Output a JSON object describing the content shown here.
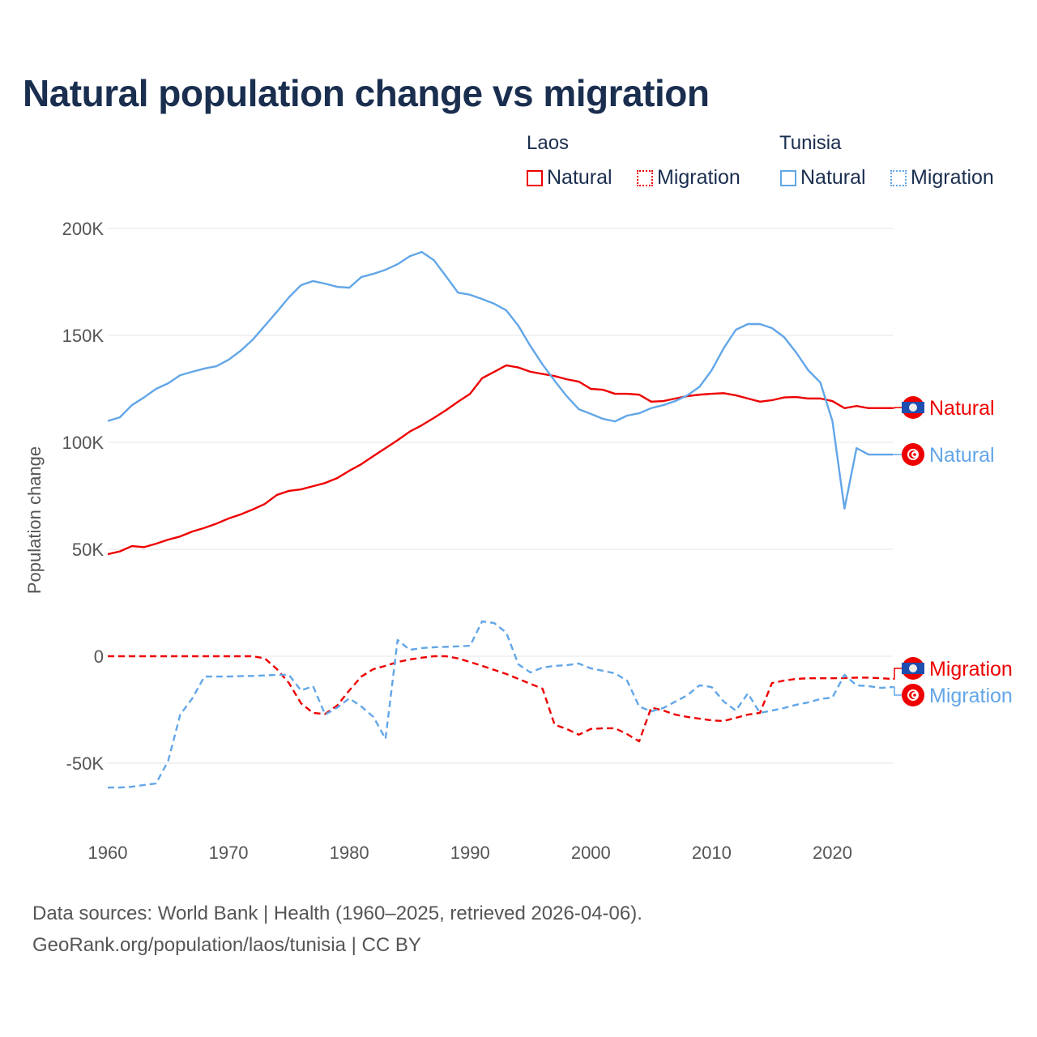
{
  "title": "Natural population change vs migration",
  "legend": {
    "groups": [
      {
        "name": "Laos",
        "items": [
          "Natural",
          "Migration"
        ]
      },
      {
        "name": "Tunisia",
        "items": [
          "Natural",
          "Migration"
        ]
      }
    ]
  },
  "colors": {
    "laos": "#ee0000",
    "tunisia": "#62a6e8",
    "grid": "#e6e6e6"
  },
  "footer": {
    "line1": "Data sources: World Bank | Health (1960–2025, retrieved 2026-04-06).",
    "line2": "GeoRank.org/population/laos/tunisia | CC BY"
  },
  "chart_data": {
    "type": "line",
    "title": "Natural population change vs migration",
    "xlabel": "",
    "ylabel": "Population change",
    "xlim": [
      1960,
      2025
    ],
    "ylim": [
      -65000,
      200000
    ],
    "x_ticks": [
      "1960",
      "1970",
      "1980",
      "1990",
      "2000",
      "2010",
      "2020"
    ],
    "y_ticks": [
      {
        "v": -50000,
        "label": "-50K"
      },
      {
        "v": 0,
        "label": "0"
      },
      {
        "v": 50000,
        "label": "50K"
      },
      {
        "v": 100000,
        "label": "100K"
      },
      {
        "v": 150000,
        "label": "150K"
      },
      {
        "v": 200000,
        "label": "200K"
      }
    ],
    "grid": true,
    "legend_position": "top-right",
    "start_year": 1960,
    "series": [
      {
        "name": "Laos Natural",
        "country": "laos",
        "dashed": false,
        "end_label": "Natural",
        "values": [
          47.7,
          49,
          51.5,
          51,
          52.6,
          54.5,
          56,
          58.3,
          60,
          62,
          64.4,
          66.3,
          68.6,
          71.2,
          75.4,
          77.3,
          78,
          79.5,
          81,
          83.3,
          86.7,
          89.8,
          93.6,
          97.3,
          101,
          105,
          108,
          111.4,
          115,
          119,
          122.7,
          130,
          133,
          136,
          135,
          133,
          132,
          131,
          129.5,
          128.4,
          125,
          124.6,
          122.7,
          122.7,
          122.3,
          119,
          119.3,
          120.5,
          121.6,
          122.3,
          122.7,
          123,
          122,
          120.5,
          119,
          119.7,
          121,
          121.2,
          120.5,
          120.5,
          119.3,
          116,
          117,
          116
        ]
      },
      {
        "name": "Laos Migration",
        "country": "laos",
        "dashed": true,
        "end_label": "Migration",
        "values": [
          0,
          0,
          0,
          0,
          0,
          0,
          0,
          0,
          0,
          0,
          0,
          0,
          0,
          -1,
          -6,
          -12.5,
          -22,
          -26.5,
          -27,
          -23,
          -16,
          -9.5,
          -6,
          -4.5,
          -2.7,
          -1.5,
          -0.7,
          0,
          0,
          -1,
          -2.7,
          -4.5,
          -6.4,
          -8.3,
          -10.6,
          -12.9,
          -15.2,
          -32,
          -34,
          -36.7,
          -34,
          -33.7,
          -33.7,
          -36.4,
          -39.8,
          -24,
          -25.4,
          -27.3,
          -28.4,
          -29.2,
          -30,
          -30.3,
          -28.8,
          -27.3,
          -26.5,
          -12.5,
          -11.4,
          -10.6,
          -10.3,
          -10.3,
          -10.3,
          -10.2,
          -10,
          -10,
          -10.3,
          -10.6
        ]
      },
      {
        "name": "Tunisia Natural",
        "country": "tunisia",
        "dashed": false,
        "end_label": "Natural",
        "values": [
          110,
          111.7,
          117.4,
          121,
          125,
          127.6,
          131.4,
          133,
          134.5,
          135.6,
          138.6,
          142.8,
          148,
          154.5,
          161,
          167.8,
          173.5,
          175.4,
          174.2,
          172.7,
          172.3,
          177.3,
          178.8,
          180.7,
          183.3,
          187,
          189,
          185.2,
          177.7,
          170,
          169,
          167,
          164.8,
          161.7,
          154.5,
          145,
          136.4,
          128.8,
          121.6,
          115.5,
          113.3,
          111,
          109.8,
          112.5,
          113.6,
          116,
          117.4,
          119.3,
          122,
          126,
          133.7,
          144,
          152.6,
          155.3,
          155.3,
          153.4,
          149.2,
          142,
          133.7,
          128,
          110,
          69,
          97.3,
          94.3
        ]
      },
      {
        "name": "Tunisia Migration",
        "country": "tunisia",
        "dashed": true,
        "end_label": "Migration",
        "values": [
          -61.4,
          -61.4,
          -61,
          -60.2,
          -59.5,
          -49,
          -27.3,
          -19.7,
          -9.5,
          -9.5,
          -9.5,
          -9.3,
          -9.2,
          -9,
          -8.7,
          -8.7,
          -16,
          -14,
          -27.3,
          -24,
          -19.7,
          -23.5,
          -28.4,
          -38.6,
          7.6,
          3,
          3.8,
          4.2,
          4.4,
          4.6,
          4.9,
          16.3,
          15.5,
          11,
          -3.8,
          -7.6,
          -5.3,
          -4.5,
          -4.2,
          -3.4,
          -5.7,
          -6.8,
          -8,
          -11.4,
          -23.5,
          -25.8,
          -24.2,
          -21.2,
          -18.2,
          -13.6,
          -14.4,
          -21.2,
          -25.4,
          -17.4,
          -26.5,
          -25.4,
          -24.2,
          -22.7,
          -21.6,
          -20,
          -19.3,
          -8.7,
          -13.6,
          -14,
          -14.8,
          -14.4
        ]
      }
    ]
  }
}
